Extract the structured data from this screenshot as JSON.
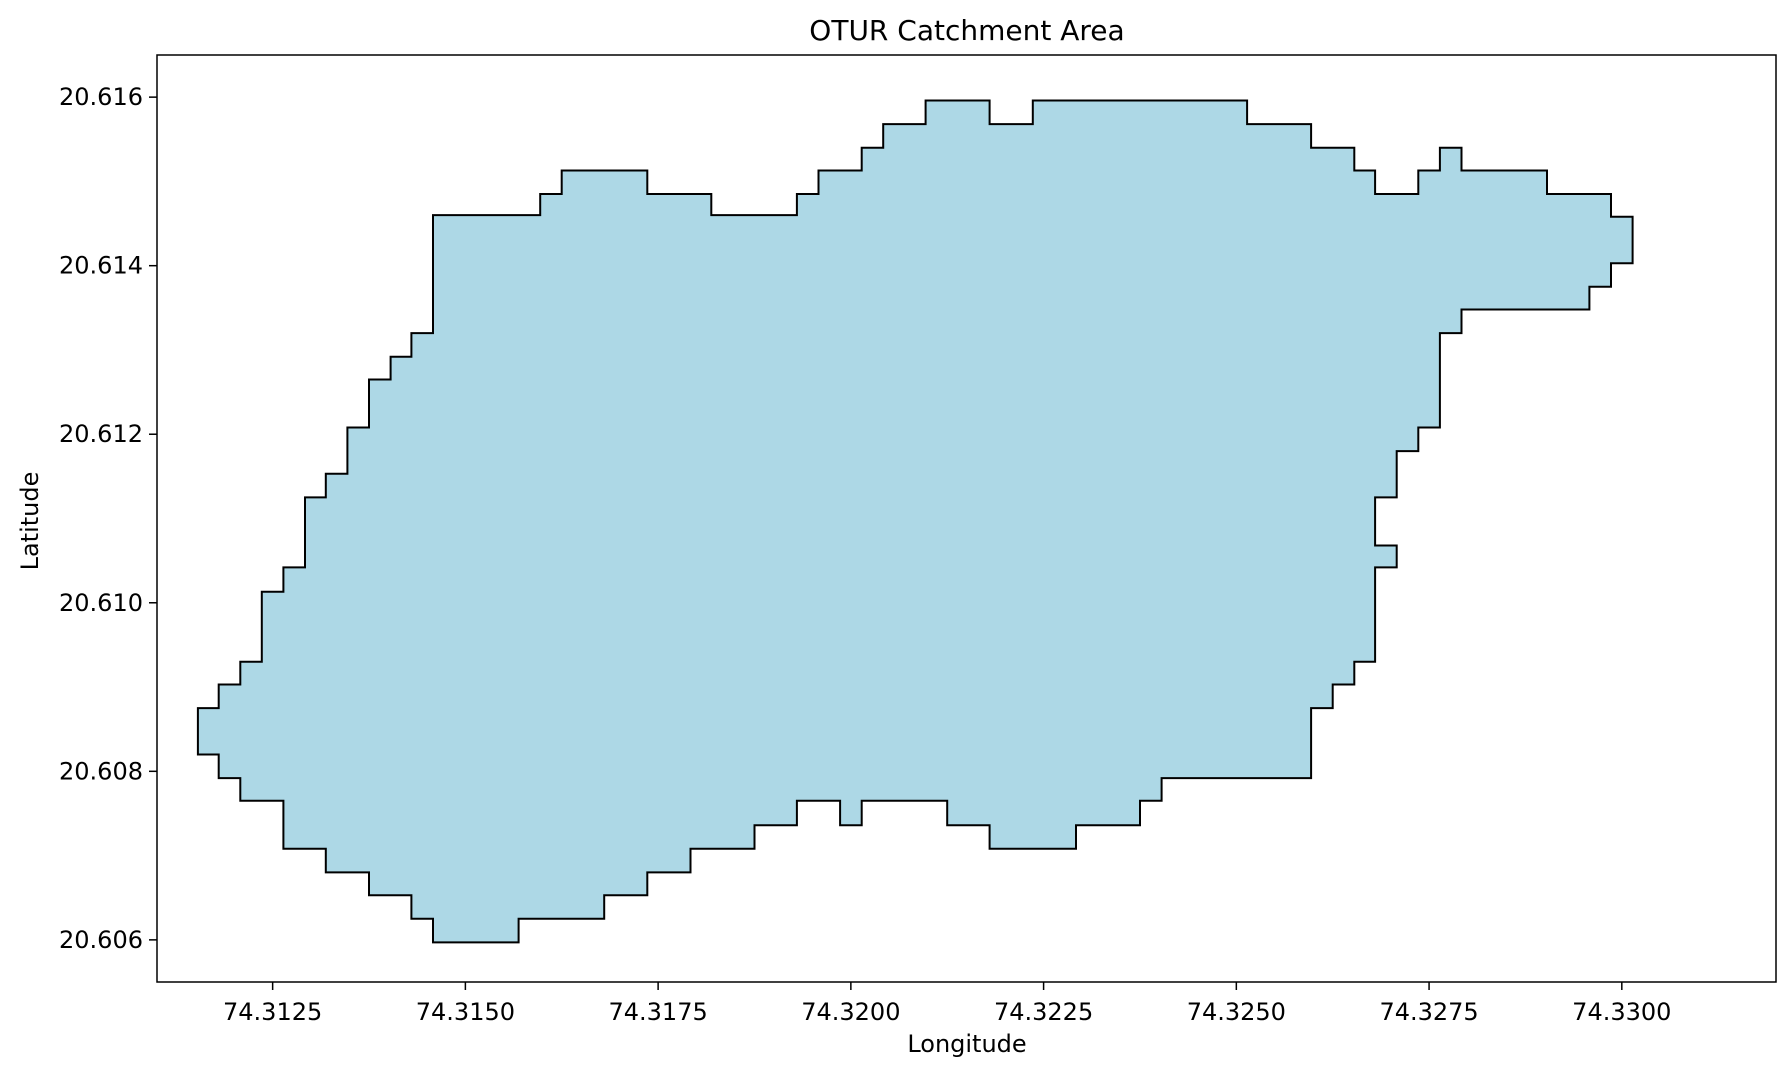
{
  "chart_data": {
    "type": "area",
    "title": "OTUR Catchment Area",
    "xlabel": "Longitude",
    "ylabel": "Latitude",
    "xlim": [
      74.311,
      74.332
    ],
    "ylim": [
      20.6055,
      20.6165
    ],
    "xticks": [
      74.3125,
      74.315,
      74.3175,
      74.32,
      74.3225,
      74.325,
      74.3275,
      74.33
    ],
    "xtick_labels": [
      "74.3125",
      "74.3150",
      "74.3175",
      "74.3200",
      "74.3225",
      "74.3250",
      "74.3275",
      "74.3300"
    ],
    "yticks": [
      20.606,
      20.608,
      20.61,
      20.612,
      20.614,
      20.616
    ],
    "ytick_labels": [
      "20.606",
      "20.608",
      "20.610",
      "20.612",
      "20.614",
      "20.616"
    ],
    "grid": false,
    "fill_color": "#add8e6",
    "edge_color": "#000000",
    "boundary": [
      [
        74.31458,
        20.6146
      ],
      [
        74.31597,
        20.6146
      ],
      [
        74.31597,
        20.61485
      ],
      [
        74.31625,
        20.61485
      ],
      [
        74.31625,
        20.61513
      ],
      [
        74.31736,
        20.61513
      ],
      [
        74.31736,
        20.61485
      ],
      [
        74.31819,
        20.61485
      ],
      [
        74.31819,
        20.6146
      ],
      [
        74.3193,
        20.6146
      ],
      [
        74.3193,
        20.61485
      ],
      [
        74.31958,
        20.61485
      ],
      [
        74.31958,
        20.61513
      ],
      [
        74.32014,
        20.61513
      ],
      [
        74.32014,
        20.6154
      ],
      [
        74.32042,
        20.6154
      ],
      [
        74.32042,
        20.61568
      ],
      [
        74.32097,
        20.61568
      ],
      [
        74.32097,
        20.61596
      ],
      [
        74.3218,
        20.61596
      ],
      [
        74.3218,
        20.61568
      ],
      [
        74.32236,
        20.61568
      ],
      [
        74.32236,
        20.61596
      ],
      [
        74.32514,
        20.61596
      ],
      [
        74.32514,
        20.61568
      ],
      [
        74.32597,
        20.61568
      ],
      [
        74.32597,
        20.6154
      ],
      [
        74.32653,
        20.6154
      ],
      [
        74.32653,
        20.61513
      ],
      [
        74.3268,
        20.61513
      ],
      [
        74.3268,
        20.61485
      ],
      [
        74.32736,
        20.61485
      ],
      [
        74.32736,
        20.61513
      ],
      [
        74.32764,
        20.61513
      ],
      [
        74.32764,
        20.6154
      ],
      [
        74.32792,
        20.6154
      ],
      [
        74.32792,
        20.61513
      ],
      [
        74.32903,
        20.61513
      ],
      [
        74.32903,
        20.61485
      ],
      [
        74.32986,
        20.61485
      ],
      [
        74.32986,
        20.61458
      ],
      [
        74.33014,
        20.61458
      ],
      [
        74.33014,
        20.61403
      ],
      [
        74.32986,
        20.61403
      ],
      [
        74.32986,
        20.61375
      ],
      [
        74.32958,
        20.61375
      ],
      [
        74.32958,
        20.61348
      ],
      [
        74.32792,
        20.61348
      ],
      [
        74.32792,
        20.6132
      ],
      [
        74.32764,
        20.6132
      ],
      [
        74.32764,
        20.61208
      ],
      [
        74.32736,
        20.61208
      ],
      [
        74.32736,
        20.6118
      ],
      [
        74.32708,
        20.6118
      ],
      [
        74.32708,
        20.61125
      ],
      [
        74.3268,
        20.61125
      ],
      [
        74.3268,
        20.61068
      ],
      [
        74.32708,
        20.61068
      ],
      [
        74.32708,
        20.61042
      ],
      [
        74.3268,
        20.61042
      ],
      [
        74.3268,
        20.6093
      ],
      [
        74.32653,
        20.6093
      ],
      [
        74.32653,
        20.60903
      ],
      [
        74.32625,
        20.60903
      ],
      [
        74.32625,
        20.60875
      ],
      [
        74.32597,
        20.60875
      ],
      [
        74.32597,
        20.60792
      ],
      [
        74.32403,
        20.60792
      ],
      [
        74.32403,
        20.60765
      ],
      [
        74.32375,
        20.60765
      ],
      [
        74.32375,
        20.60736
      ],
      [
        74.32292,
        20.60736
      ],
      [
        74.32292,
        20.60708
      ],
      [
        74.3218,
        20.60708
      ],
      [
        74.3218,
        20.60736
      ],
      [
        74.32125,
        20.60736
      ],
      [
        74.32125,
        20.60765
      ],
      [
        74.32014,
        20.60765
      ],
      [
        74.32014,
        20.60736
      ],
      [
        74.31986,
        20.60736
      ],
      [
        74.31986,
        20.60765
      ],
      [
        74.3193,
        20.60765
      ],
      [
        74.3193,
        20.60736
      ],
      [
        74.31875,
        20.60736
      ],
      [
        74.31875,
        20.60708
      ],
      [
        74.31792,
        20.60708
      ],
      [
        74.31792,
        20.6068
      ],
      [
        74.31736,
        20.6068
      ],
      [
        74.31736,
        20.60653
      ],
      [
        74.3168,
        20.60653
      ],
      [
        74.3168,
        20.60625
      ],
      [
        74.31569,
        20.60625
      ],
      [
        74.31569,
        20.60597
      ],
      [
        74.31458,
        20.60597
      ],
      [
        74.31458,
        20.60625
      ],
      [
        74.3143,
        20.60625
      ],
      [
        74.3143,
        20.60653
      ],
      [
        74.31375,
        20.60653
      ],
      [
        74.31375,
        20.6068
      ],
      [
        74.31319,
        20.6068
      ],
      [
        74.31319,
        20.60708
      ],
      [
        74.31264,
        20.60708
      ],
      [
        74.31264,
        20.60765
      ],
      [
        74.31208,
        20.60765
      ],
      [
        74.31208,
        20.60792
      ],
      [
        74.3118,
        20.60792
      ],
      [
        74.3118,
        20.6082
      ],
      [
        74.31153,
        20.6082
      ],
      [
        74.31153,
        20.60875
      ],
      [
        74.3118,
        20.60875
      ],
      [
        74.3118,
        20.60903
      ],
      [
        74.31208,
        20.60903
      ],
      [
        74.31208,
        20.6093
      ],
      [
        74.31236,
        20.6093
      ],
      [
        74.31236,
        20.61013
      ],
      [
        74.31264,
        20.61013
      ],
      [
        74.31264,
        20.61042
      ],
      [
        74.31292,
        20.61042
      ],
      [
        74.31292,
        20.61125
      ],
      [
        74.31319,
        20.61125
      ],
      [
        74.31319,
        20.61153
      ],
      [
        74.31347,
        20.61153
      ],
      [
        74.31347,
        20.61208
      ],
      [
        74.31375,
        20.61208
      ],
      [
        74.31375,
        20.61265
      ],
      [
        74.31403,
        20.61265
      ],
      [
        74.31403,
        20.61292
      ],
      [
        74.3143,
        20.61292
      ],
      [
        74.3143,
        20.6132
      ],
      [
        74.31458,
        20.6132
      ],
      [
        74.31458,
        20.6146
      ]
    ]
  }
}
